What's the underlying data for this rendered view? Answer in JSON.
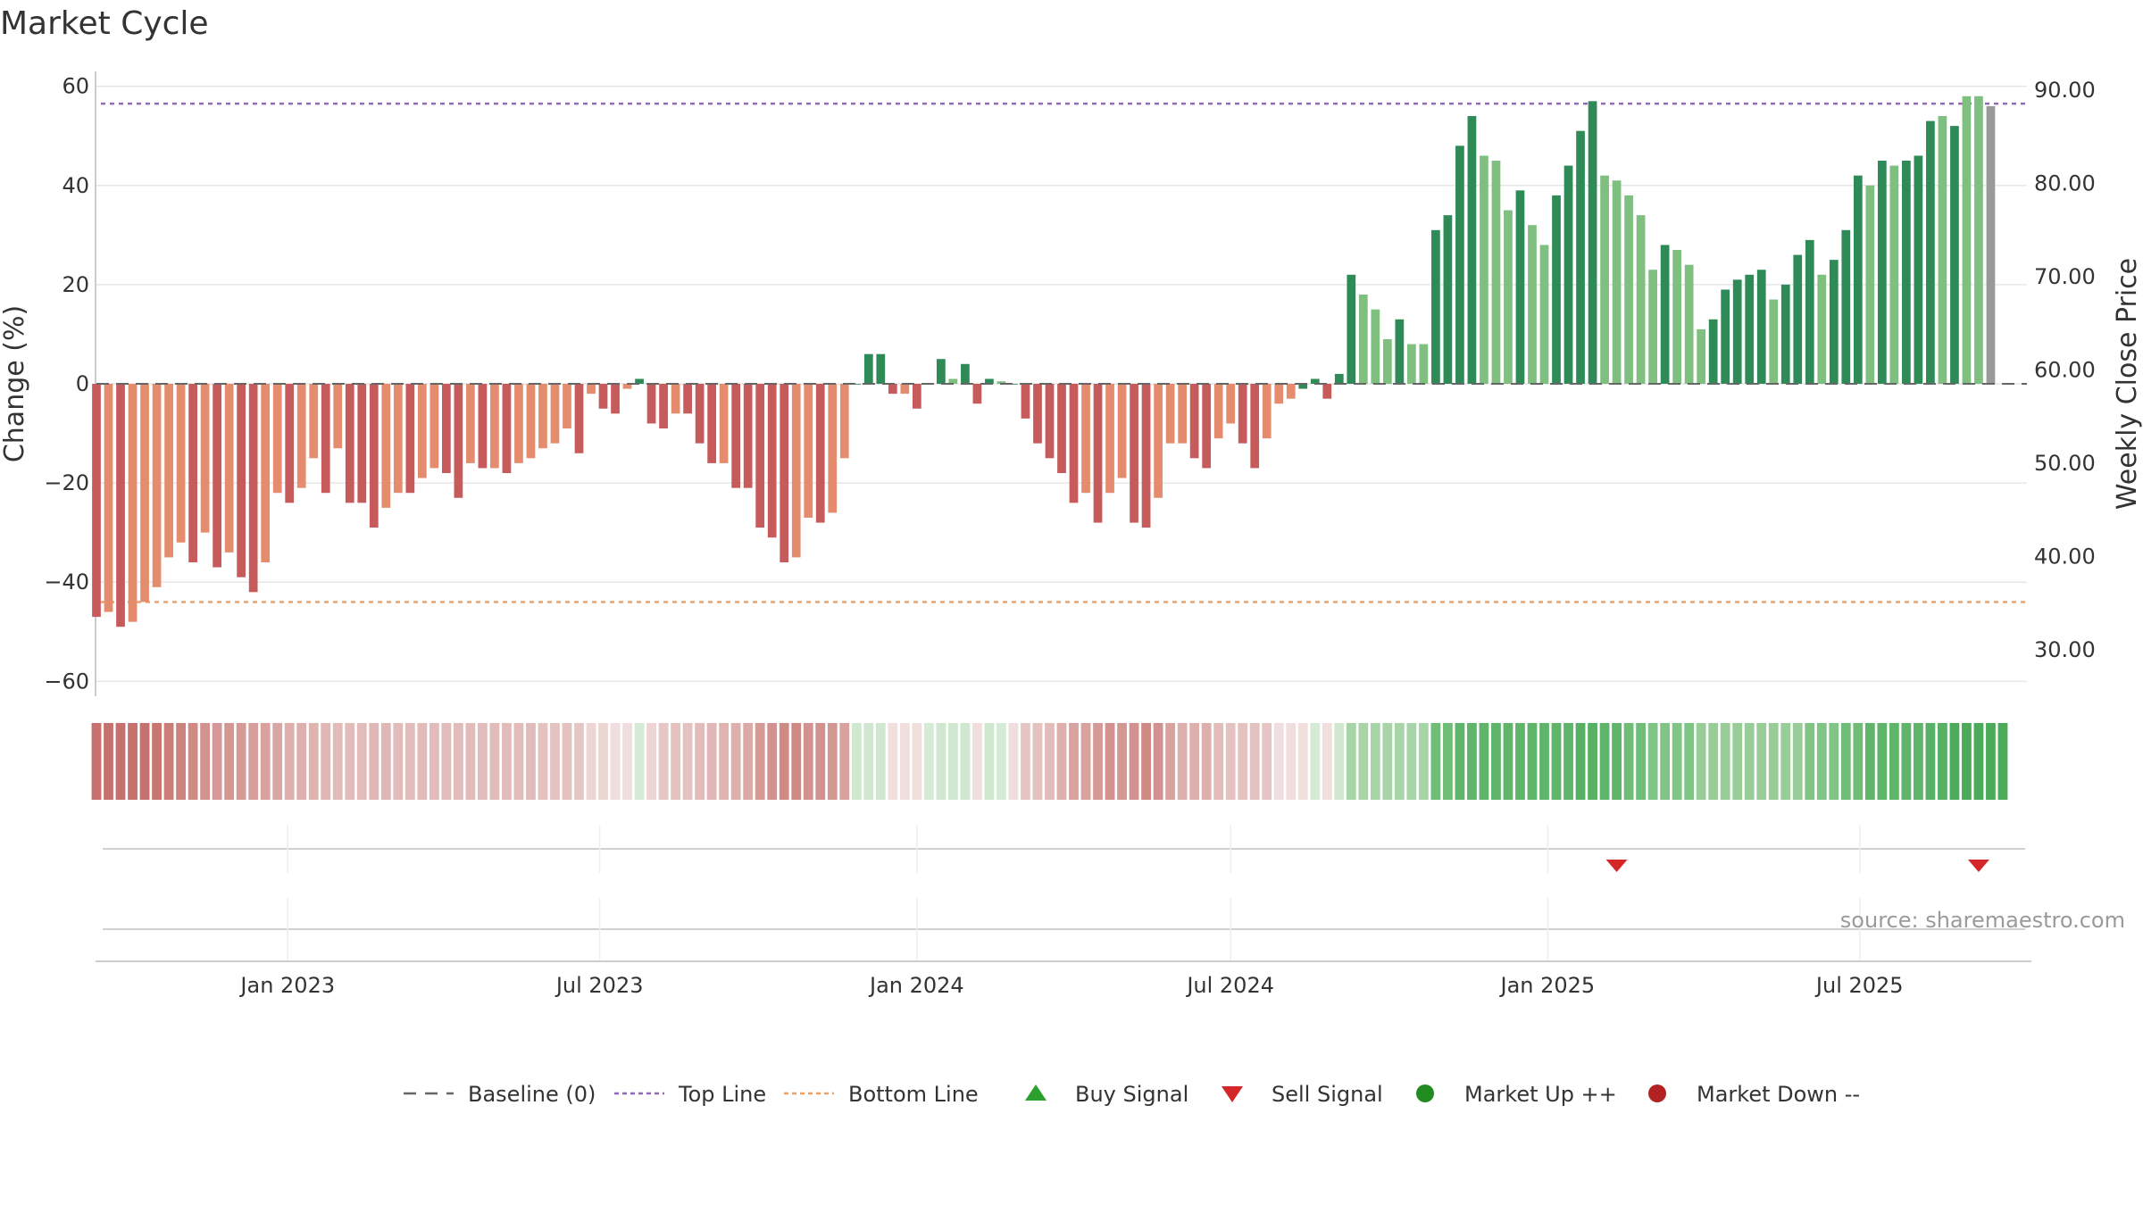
{
  "chart_data": {
    "type": "bar",
    "title": "Market Cycle",
    "ylabel_left": "Change (%)",
    "ylabel_right": "Weekly Close Price",
    "ylim_left": [
      -63,
      63
    ],
    "ylim_right": [
      25,
      92
    ],
    "yticks_left": [
      60,
      40,
      20,
      0,
      -20,
      -40,
      -60
    ],
    "ytick_labels_left": [
      "60",
      "40",
      "20",
      "0",
      "−20",
      "−40",
      "−60"
    ],
    "yticks_right": [
      90,
      80,
      70,
      60,
      50,
      40,
      30
    ],
    "ytick_labels_right": [
      "90.00",
      "80.00",
      "70.00",
      "60.00",
      "50.00",
      "40.00",
      "30.00"
    ],
    "xlim": [
      "2022-09-12",
      "2025-10-06"
    ],
    "x_ticks": [
      {
        "date": "2023-01-01",
        "label": "Jan 2023"
      },
      {
        "date": "2023-07-01",
        "label": "Jul 2023"
      },
      {
        "date": "2024-01-01",
        "label": "Jan 2024"
      },
      {
        "date": "2024-07-01",
        "label": "Jul 2024"
      },
      {
        "date": "2025-01-01",
        "label": "Jan 2025"
      },
      {
        "date": "2025-07-01",
        "label": "Jul 2025"
      }
    ],
    "top_line": 56.5,
    "bottom_line": -44,
    "baseline": 0,
    "grid": true,
    "legend_position": "bottom-center",
    "start_week": "2022-09-12",
    "changes": [
      -47,
      -46,
      -49,
      -48,
      -44,
      -41,
      -35,
      -32,
      -36,
      -30,
      -37,
      -34,
      -39,
      -42,
      -36,
      -22,
      -24,
      -21,
      -15,
      -22,
      -13,
      -24,
      -24,
      -29,
      -25,
      -22,
      -22,
      -19,
      -17,
      -18,
      -23,
      -16,
      -17,
      -17,
      -18,
      -16,
      -15,
      -13,
      -12,
      -9,
      -14,
      -2,
      -5,
      -6,
      -1,
      1,
      -8,
      -9,
      -6,
      -6,
      -12,
      -16,
      -16,
      -21,
      -21,
      -29,
      -31,
      -36,
      -35,
      -27,
      -28,
      -26,
      -15,
      0,
      6,
      6,
      -2,
      -2,
      -5,
      0,
      5,
      1,
      4,
      -4,
      1,
      0.5,
      0,
      -7,
      -12,
      -15,
      -18,
      -24,
      -22,
      -28,
      -22,
      -19,
      -28,
      -29,
      -23,
      -12,
      -12,
      -15,
      -17,
      -11,
      -8,
      -12,
      -17,
      -11,
      -4,
      -3,
      -1,
      1,
      -3,
      2,
      22,
      18,
      15,
      9,
      13,
      8,
      8,
      31,
      34,
      48,
      54,
      46,
      45,
      35,
      39,
      32,
      28,
      38,
      44,
      51,
      57,
      42,
      41,
      38,
      34,
      23,
      28,
      27,
      24,
      11,
      13,
      19,
      21,
      22,
      23,
      17,
      20,
      26,
      29,
      22,
      25,
      31,
      42,
      40,
      45,
      44,
      45,
      46,
      53,
      54,
      52,
      58,
      58,
      56
    ],
    "bar_colors": [
      "#c75a5a",
      "#e58c6e",
      "#c75a5a",
      "#e58c6e",
      "#e58c6e",
      "#e58c6e",
      "#e58c6e",
      "#e58c6e",
      "#c75a5a",
      "#e58c6e",
      "#c75a5a",
      "#e58c6e",
      "#c75a5a",
      "#c75a5a",
      "#e58c6e",
      "#e58c6e",
      "#c75a5a",
      "#e58c6e",
      "#e58c6e",
      "#c75a5a",
      "#e58c6e",
      "#c75a5a",
      "#c75a5a",
      "#c75a5a",
      "#e58c6e",
      "#e58c6e",
      "#c75a5a",
      "#e58c6e",
      "#e58c6e",
      "#c75a5a",
      "#c75a5a",
      "#e58c6e",
      "#c75a5a",
      "#e58c6e",
      "#c75a5a",
      "#e58c6e",
      "#e58c6e",
      "#e58c6e",
      "#e58c6e",
      "#e58c6e",
      "#c75a5a",
      "#e58c6e",
      "#c75a5a",
      "#c75a5a",
      "#e58c6e",
      "#2e8b57",
      "#c75a5a",
      "#c75a5a",
      "#e58c6e",
      "#c75a5a",
      "#c75a5a",
      "#c75a5a",
      "#e58c6e",
      "#c75a5a",
      "#c75a5a",
      "#c75a5a",
      "#c75a5a",
      "#c75a5a",
      "#e58c6e",
      "#e58c6e",
      "#c75a5a",
      "#e58c6e",
      "#e58c6e",
      "#2e8b57",
      "#2e8b57",
      "#2e8b57",
      "#c75a5a",
      "#e58c6e",
      "#c75a5a",
      "#2e8b57",
      "#2e8b57",
      "#7fbf7f",
      "#2e8b57",
      "#c75a5a",
      "#2e8b57",
      "#7fbf7f",
      "#2e8b57",
      "#c75a5a",
      "#c75a5a",
      "#c75a5a",
      "#c75a5a",
      "#c75a5a",
      "#e58c6e",
      "#c75a5a",
      "#e58c6e",
      "#e58c6e",
      "#c75a5a",
      "#c75a5a",
      "#e58c6e",
      "#e58c6e",
      "#e58c6e",
      "#c75a5a",
      "#c75a5a",
      "#e58c6e",
      "#e58c6e",
      "#c75a5a",
      "#c75a5a",
      "#e58c6e",
      "#e58c6e",
      "#e58c6e",
      "#2e8b57",
      "#2e8b57",
      "#c75a5a",
      "#2e8b57",
      "#2e8b57",
      "#7fbf7f",
      "#7fbf7f",
      "#7fbf7f",
      "#2e8b57",
      "#7fbf7f",
      "#7fbf7f",
      "#2e8b57",
      "#2e8b57",
      "#2e8b57",
      "#2e8b57",
      "#7fbf7f",
      "#7fbf7f",
      "#7fbf7f",
      "#2e8b57",
      "#7fbf7f",
      "#7fbf7f",
      "#2e8b57",
      "#2e8b57",
      "#2e8b57",
      "#2e8b57",
      "#7fbf7f",
      "#7fbf7f",
      "#7fbf7f",
      "#7fbf7f",
      "#7fbf7f",
      "#2e8b57",
      "#7fbf7f",
      "#7fbf7f",
      "#7fbf7f",
      "#2e8b57",
      "#2e8b57",
      "#2e8b57",
      "#2e8b57",
      "#2e8b57",
      "#7fbf7f",
      "#2e8b57",
      "#2e8b57",
      "#2e8b57",
      "#7fbf7f",
      "#2e8b57",
      "#2e8b57",
      "#2e8b57",
      "#7fbf7f",
      "#2e8b57",
      "#7fbf7f",
      "#2e8b57",
      "#2e8b57",
      "#2e8b57",
      "#7fbf7f",
      "#2e8b57",
      "#7fbf7f",
      "#7fbf7f"
    ],
    "strip_colors": [
      "#c7716e",
      "#c7716e",
      "#c7716e",
      "#c7716e",
      "#c7716e",
      "#c8766f",
      "#cb7d76",
      "#cd837d",
      "#d08a84",
      "#d39190",
      "#d5979a",
      "#d49893",
      "#d59a96",
      "#d89e9b",
      "#d9a29f",
      "#d9a6a3",
      "#ddb0ad",
      "#ddb0ad",
      "#deb3b0",
      "#e0b7b4",
      "#e2bcba",
      "#e2bcba",
      "#e2bcba",
      "#e0b7b4",
      "#e0b7b4",
      "#e2bcba",
      "#e2bcba",
      "#e2bcba",
      "#e2bcba",
      "#e2bcba",
      "#e2bcba",
      "#e2bcba",
      "#e2bcba",
      "#e2bcba",
      "#e2bcba",
      "#e2bcba",
      "#e2bcba",
      "#e4c2c0",
      "#e4c2c0",
      "#e4c2c0",
      "#e6c6c4",
      "#ecd5d3",
      "#ecd5d3",
      "#efdedd",
      "#efdedd",
      "#d5ebd5",
      "#ecd5d3",
      "#e6c6c4",
      "#e4c2c0",
      "#e4c2c0",
      "#e2bcba",
      "#e0b7b4",
      "#deb3b0",
      "#ddb0ad",
      "#dba9a6",
      "#d59a96",
      "#d39190",
      "#d08a84",
      "#d08a84",
      "#d39190",
      "#d39190",
      "#d49893",
      "#d9a29f",
      "#cfe8cf",
      "#cfe8cf",
      "#cfe8cf",
      "#f1dfde",
      "#f1dfde",
      "#f1dfde",
      "#d5ebd5",
      "#cfe8cf",
      "#cfe8cf",
      "#cfe8cf",
      "#f1dfde",
      "#cfe8cf",
      "#d5ebd5",
      "#efdedd",
      "#e6c6c4",
      "#e4c2c0",
      "#e2bcba",
      "#ddb0ad",
      "#d9a29f",
      "#d9a29f",
      "#d59a96",
      "#d39190",
      "#d49893",
      "#d39190",
      "#d08a84",
      "#d39190",
      "#d9a29f",
      "#ddb0ad",
      "#ddb0ad",
      "#ddb0ad",
      "#e2bcba",
      "#e4c2c0",
      "#e4c2c0",
      "#e4c2c0",
      "#e6c6c4",
      "#efdedd",
      "#efdedd",
      "#f1dfde",
      "#d5ebd5",
      "#f1dfde",
      "#cfe8cf",
      "#a8d5a8",
      "#a8d5a8",
      "#a8d5a8",
      "#a8d5a8",
      "#a8d5a8",
      "#a8d5a8",
      "#a8d5a8",
      "#70bd78",
      "#70bd78",
      "#5fb56a",
      "#5fb56a",
      "#5fb56a",
      "#5fb56a",
      "#5fb56a",
      "#5fb56a",
      "#5fb56a",
      "#5fb56a",
      "#5fb56a",
      "#5fb56a",
      "#57b063",
      "#57b063",
      "#5fb56a",
      "#5fb56a",
      "#70bd78",
      "#70bd78",
      "#80c486",
      "#80c486",
      "#80c486",
      "#80c486",
      "#98cd98",
      "#98cd98",
      "#98cd98",
      "#98cd98",
      "#98cd98",
      "#98cd98",
      "#98cd98",
      "#98cd98",
      "#98cd98",
      "#80c486",
      "#80c486",
      "#80c486",
      "#70bd78",
      "#70bd78",
      "#5fb56a",
      "#5fb56a",
      "#5fb56a",
      "#5fb56a",
      "#5fb56a",
      "#57b063",
      "#57b063",
      "#4cab5a",
      "#4cab5a",
      "#4cab5a",
      "#4cab5a",
      "#4cab5a"
    ],
    "sell_signals": [
      "2025-02-10",
      "2025-09-08"
    ],
    "buy_signals": [],
    "source_text": "source: sharemaestro.com"
  },
  "legend": [
    {
      "label": "Baseline (0)",
      "icon": "dash-line-icon",
      "color": "#666666"
    },
    {
      "label": "Top Line",
      "icon": "dotted-line-icon",
      "color": "#9467bd"
    },
    {
      "label": "Bottom Line",
      "icon": "dotted-line-icon",
      "color": "#f0a060"
    },
    {
      "label": "Buy Signal",
      "icon": "triangle-up-icon",
      "color": "#2ca02c"
    },
    {
      "label": "Sell Signal",
      "icon": "triangle-down-icon",
      "color": "#d62728"
    },
    {
      "label": "Market Up ++",
      "icon": "circle-icon",
      "color": "#228b22"
    },
    {
      "label": "Market Down --",
      "icon": "circle-icon",
      "color": "#b22222"
    }
  ]
}
